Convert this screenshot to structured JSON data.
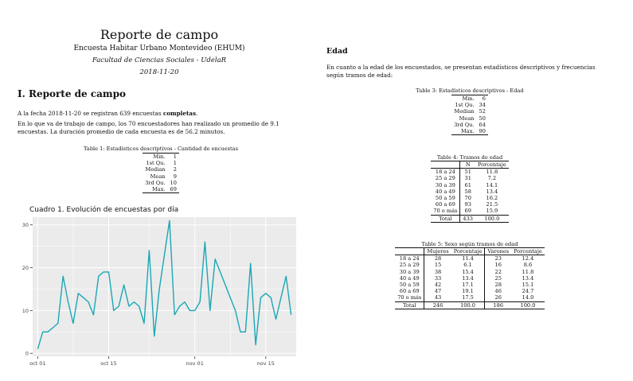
{
  "header": {
    "title": "Reporte de campo",
    "subtitle": "Encuesta Habitar Urbano Montevideo (EHUM)",
    "affiliation": "Facultad de Ciencias Sociales - UdelaR",
    "date": "2018-11-20"
  },
  "section1": {
    "heading": "I. Reporte de campo",
    "p1_before": "A la fecha 2018-11-20 se registran 639 encuestas ",
    "p1_bold": "completas",
    "p1_after": ".",
    "p2": "En lo que va de trabajo de campo, los 70 encuestadores han realizado un promedio de 9.1 encuestas. La duración promedio de cada encuesta es de 56.2 minutos."
  },
  "table1": {
    "caption": "Table 1: Estadísticos descriptivos - Cantidad de encuestas",
    "rows": [
      {
        "label": "Min.",
        "value": "1"
      },
      {
        "label": "1st Qu.",
        "value": "1"
      },
      {
        "label": "Median",
        "value": "2"
      },
      {
        "label": "Mean",
        "value": "9"
      },
      {
        "label": "3rd Qu.",
        "value": "10"
      },
      {
        "label": "Max.",
        "value": "69"
      }
    ]
  },
  "edad": {
    "heading": "Edad",
    "text": "En cuanto a la edad de los encuestados, se presentan estadísticos descriptivos y frecuencias según tramos de edad:"
  },
  "table3": {
    "caption": "Table 3: Estadísticos descriptivos - Edad",
    "rows": [
      {
        "label": "Min.",
        "value": "6"
      },
      {
        "label": "1st Qu.",
        "value": "34"
      },
      {
        "label": "Median",
        "value": "52"
      },
      {
        "label": "Mean",
        "value": "50"
      },
      {
        "label": "3rd Qu.",
        "value": "64"
      },
      {
        "label": "Max.",
        "value": "90"
      }
    ]
  },
  "table4": {
    "caption": "Table 4: Tramos de edad",
    "headers": [
      "",
      "N",
      "Porcentaje"
    ],
    "rows": [
      [
        "18 a 24",
        "51",
        "11.8"
      ],
      [
        "25 a 29",
        "31",
        "7.2"
      ],
      [
        "30 a 39",
        "61",
        "14.1"
      ],
      [
        "40 a 49",
        "58",
        "13.4"
      ],
      [
        "50 a 59",
        "70",
        "16.2"
      ],
      [
        "60 a 69",
        "93",
        "21.5"
      ],
      [
        "70 o más",
        "69",
        "15.9"
      ]
    ],
    "total": [
      "Total",
      "433",
      "100.0"
    ]
  },
  "table5": {
    "caption": "Table 5: Sexo según tramos de edad",
    "headers": [
      "",
      "Mujeres",
      "Porcentaje",
      "Varones",
      "Porcentaje"
    ],
    "rows": [
      [
        "18 a 24",
        "28",
        "11.4",
        "23",
        "12.4"
      ],
      [
        "25 a 29",
        "15",
        "6.1",
        "16",
        "8.6"
      ],
      [
        "30 a 39",
        "38",
        "15.4",
        "22",
        "11.8"
      ],
      [
        "40 a 49",
        "33",
        "13.4",
        "25",
        "13.4"
      ],
      [
        "50 a 59",
        "42",
        "17.1",
        "28",
        "15.1"
      ],
      [
        "60 a 69",
        "47",
        "19.1",
        "46",
        "24.7"
      ],
      [
        "70 o más",
        "43",
        "17.5",
        "26",
        "14.0"
      ]
    ],
    "total": [
      "Total",
      "246",
      "100.0",
      "186",
      "100.0"
    ]
  },
  "chart_data": {
    "type": "line",
    "title": "Cuadro 1. Evolución de encuestas por día",
    "xlabel": "",
    "ylabel": "",
    "x_tick_labels": [
      "oct 01",
      "oct 15",
      "nov 01",
      "nov 15"
    ],
    "x_tick_dates": [
      "2018-10-01",
      "2018-10-15",
      "2018-11-01",
      "2018-11-15"
    ],
    "y_ticks": [
      0,
      10,
      20,
      30
    ],
    "ylim": [
      0,
      31
    ],
    "grid": true,
    "line_color": "#1AA7B5",
    "panel_color": "#EBEBEB",
    "x": [
      "2018-10-01",
      "2018-10-02",
      "2018-10-03",
      "2018-10-04",
      "2018-10-05",
      "2018-10-06",
      "2018-10-07",
      "2018-10-08",
      "2018-10-09",
      "2018-10-10",
      "2018-10-11",
      "2018-10-12",
      "2018-10-13",
      "2018-10-14",
      "2018-10-15",
      "2018-10-16",
      "2018-10-17",
      "2018-10-18",
      "2018-10-19",
      "2018-10-20",
      "2018-10-21",
      "2018-10-22",
      "2018-10-23",
      "2018-10-24",
      "2018-10-25",
      "2018-10-26",
      "2018-10-27",
      "2018-10-28",
      "2018-10-29",
      "2018-10-30",
      "2018-10-31",
      "2018-11-01",
      "2018-11-02",
      "2018-11-03",
      "2018-11-04",
      "2018-11-05",
      "2018-11-09",
      "2018-11-10",
      "2018-11-11",
      "2018-11-12",
      "2018-11-13",
      "2018-11-14",
      "2018-11-15",
      "2018-11-16",
      "2018-11-17",
      "2018-11-19",
      "2018-11-20"
    ],
    "y": [
      1,
      5,
      5,
      6,
      7,
      18,
      12,
      7,
      14,
      13,
      12,
      9,
      18,
      19,
      19,
      10,
      11,
      16,
      11,
      12,
      11,
      7,
      24,
      4,
      15,
      23,
      31,
      9,
      11,
      12,
      10,
      10,
      12,
      26,
      10,
      22,
      10,
      5,
      5,
      21,
      2,
      13,
      14,
      13,
      8,
      18,
      9
    ]
  }
}
